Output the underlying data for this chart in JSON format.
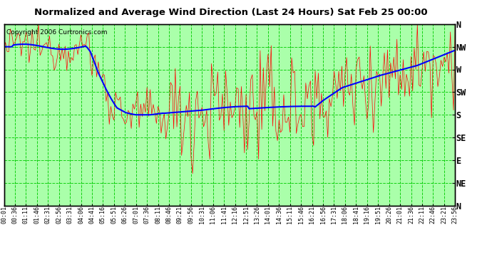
{
  "title": "Normalized and Average Wind Direction (Last 24 Hours) Sat Feb 25 00:00",
  "copyright": "Copyright 2006 Curtronics.com",
  "background_color": "#ffffff",
  "plot_bg_color": "#aaffaa",
  "grid_color": "#00cc00",
  "y_labels": [
    "N",
    "NW",
    "W",
    "SW",
    "S",
    "SE",
    "E",
    "NE",
    "N"
  ],
  "y_values": [
    360,
    315,
    270,
    225,
    180,
    135,
    90,
    45,
    0
  ],
  "red_color": "#ff0000",
  "blue_color": "#0000ff",
  "n_points": 288,
  "time_labels": [
    "00:01",
    "00:36",
    "01:11",
    "01:46",
    "02:31",
    "02:56",
    "03:31",
    "04:06",
    "04:41",
    "05:16",
    "05:51",
    "06:26",
    "07:01",
    "07:36",
    "08:11",
    "08:46",
    "09:21",
    "09:56",
    "10:31",
    "11:06",
    "11:41",
    "12:16",
    "12:51",
    "13:26",
    "14:01",
    "14:36",
    "15:11",
    "15:46",
    "16:21",
    "16:56",
    "17:31",
    "18:06",
    "18:41",
    "19:16",
    "19:51",
    "20:26",
    "21:01",
    "21:36",
    "22:11",
    "22:46",
    "23:21",
    "23:56"
  ]
}
